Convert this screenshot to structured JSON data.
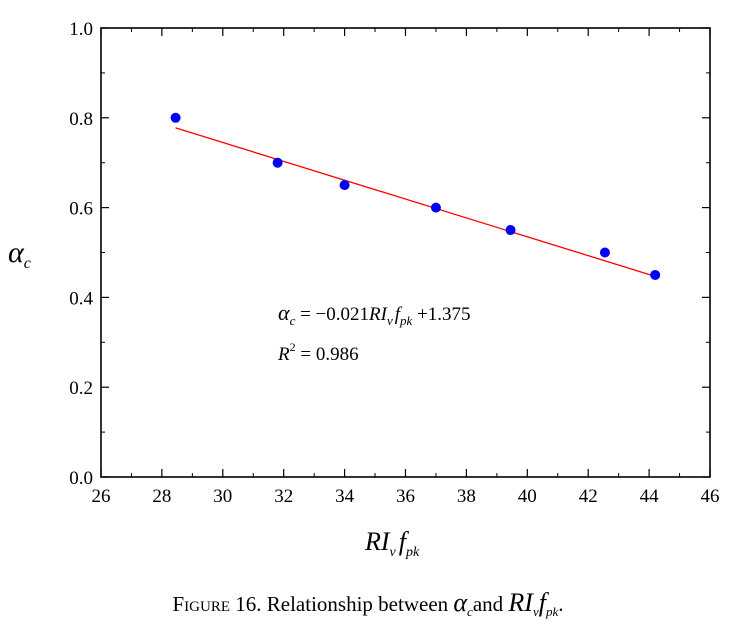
{
  "chart_data": {
    "type": "scatter",
    "xlim": [
      26,
      46
    ],
    "ylim": [
      0.0,
      1.0
    ],
    "x_ticks": [
      "26",
      "28",
      "30",
      "32",
      "34",
      "36",
      "38",
      "40",
      "42",
      "44",
      "46"
    ],
    "y_ticks": [
      "0.0",
      "0.2",
      "0.4",
      "0.6",
      "0.8",
      "1.0"
    ],
    "points": [
      {
        "x": 28.45,
        "y": 0.8
      },
      {
        "x": 31.8,
        "y": 0.7
      },
      {
        "x": 34.0,
        "y": 0.65
      },
      {
        "x": 37.0,
        "y": 0.6
      },
      {
        "x": 39.45,
        "y": 0.55
      },
      {
        "x": 42.55,
        "y": 0.5
      },
      {
        "x": 44.2,
        "y": 0.45
      }
    ],
    "fit": {
      "slope": -0.021,
      "intercept": 1.375,
      "x_start": 28.45,
      "x_end": 44.2
    },
    "point_color": "#0000ff",
    "fit_color": "#ff0000",
    "equation": {
      "lhs": "α",
      "lhs_sub": "c",
      "eq": " = −0.021",
      "var1": "RI",
      "var1_sub": "v",
      "var2": "f",
      "var2_sub": "pk",
      "const": " +1.375"
    },
    "r2": {
      "label": "R",
      "sup": "2",
      "value": " = 0.986"
    },
    "ylabel": {
      "main": "α",
      "sub": "c"
    },
    "xlabel": {
      "main": "RI",
      "sub1": "v",
      "main2": "f",
      "sub2": "pk"
    }
  },
  "caption": {
    "lead": "Figure",
    "text": " 16. Relationship between ",
    "v1": "α",
    "v1_sub": "c",
    "mid": "and ",
    "v2": "RI",
    "v2_sub": "v",
    "v3": "f",
    "v3_sub": "pk",
    "end": "."
  }
}
